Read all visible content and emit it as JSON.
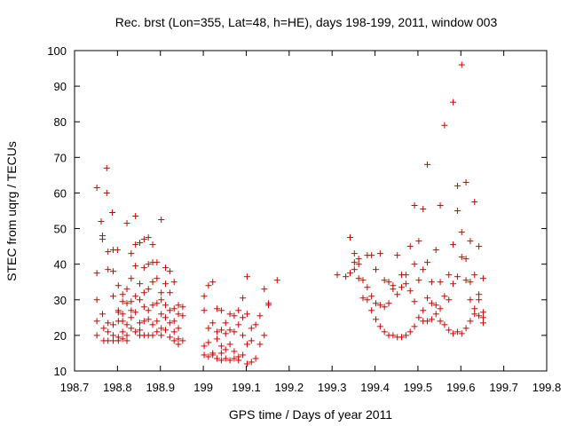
{
  "chart_data": {
    "type": "scatter",
    "title": "Rec. brst (Lon=355, Lat=48, h=HE), days 198-199, 2011, window 003",
    "xlabel": "GPS time / Days of year 2011",
    "ylabel": "STEC from uqrg / TECUs",
    "xlim": [
      198.7,
      199.8
    ],
    "ylim": [
      10,
      100
    ],
    "xticks": [
      198.7,
      198.8,
      198.9,
      199,
      199.1,
      199.2,
      199.3,
      199.4,
      199.5,
      199.6,
      199.7,
      199.8
    ],
    "xtick_labels": [
      "198.7",
      "198.8",
      "198.9",
      "199",
      "199.1",
      "199.2",
      "199.3",
      "199.4",
      "199.5",
      "199.6",
      "199.7",
      "199.8"
    ],
    "yticks": [
      10,
      20,
      30,
      40,
      50,
      60,
      70,
      80,
      90,
      100
    ],
    "ytick_labels": [
      "10",
      "20",
      "30",
      "40",
      "50",
      "60",
      "70",
      "80",
      "90",
      "100"
    ],
    "marker": "+",
    "color": "#cc0000",
    "series": [
      {
        "name": "STEC",
        "points": [
          [
            198.752,
            61.5
          ],
          [
            198.752,
            37.5
          ],
          [
            198.752,
            30.0
          ],
          [
            198.752,
            24.0
          ],
          [
            198.752,
            20.0
          ],
          [
            198.762,
            52.0
          ],
          [
            198.765,
            48.0
          ],
          [
            198.765,
            47.0
          ],
          [
            198.765,
            26.0
          ],
          [
            198.768,
            22.0
          ],
          [
            198.768,
            18.5
          ],
          [
            198.775,
            67.0
          ],
          [
            198.775,
            60.0
          ],
          [
            198.778,
            43.5
          ],
          [
            198.778,
            38.5
          ],
          [
            198.778,
            23.5
          ],
          [
            198.778,
            21.0
          ],
          [
            198.778,
            18.5
          ],
          [
            198.788,
            54.5
          ],
          [
            198.79,
            44.0
          ],
          [
            198.79,
            38.0
          ],
          [
            198.79,
            31.0
          ],
          [
            198.79,
            23.0
          ],
          [
            198.79,
            20.0
          ],
          [
            198.79,
            18.5
          ],
          [
            198.8,
            44.0
          ],
          [
            198.802,
            34.0
          ],
          [
            198.802,
            27.0
          ],
          [
            198.802,
            26.5
          ],
          [
            198.802,
            24.0
          ],
          [
            198.802,
            19.5
          ],
          [
            198.802,
            18.5
          ],
          [
            198.812,
            31.5
          ],
          [
            198.812,
            29.5
          ],
          [
            198.812,
            26.0
          ],
          [
            198.812,
            24.0
          ],
          [
            198.812,
            21.0
          ],
          [
            198.812,
            19.0
          ],
          [
            198.822,
            51.5
          ],
          [
            198.822,
            33.0
          ],
          [
            198.822,
            29.0
          ],
          [
            198.822,
            23.0
          ],
          [
            198.822,
            20.0
          ],
          [
            198.822,
            18.5
          ],
          [
            198.832,
            43.0
          ],
          [
            198.832,
            36.0
          ],
          [
            198.832,
            29.5
          ],
          [
            198.832,
            27.0
          ],
          [
            198.832,
            25.0
          ],
          [
            198.832,
            22.0
          ],
          [
            198.842,
            53.5
          ],
          [
            198.842,
            45.5
          ],
          [
            198.842,
            39.5
          ],
          [
            198.842,
            31.0
          ],
          [
            198.842,
            26.5
          ],
          [
            198.842,
            21.0
          ],
          [
            198.852,
            46.0
          ],
          [
            198.852,
            34.5
          ],
          [
            198.852,
            30.0
          ],
          [
            198.852,
            23.5
          ],
          [
            198.852,
            21.5
          ],
          [
            198.852,
            20.0
          ],
          [
            198.862,
            47.0
          ],
          [
            198.862,
            39.0
          ],
          [
            198.862,
            32.0
          ],
          [
            198.862,
            28.0
          ],
          [
            198.862,
            24.0
          ],
          [
            198.862,
            20.0
          ],
          [
            198.872,
            47.5
          ],
          [
            198.872,
            40.0
          ],
          [
            198.872,
            33.0
          ],
          [
            198.872,
            27.0
          ],
          [
            198.872,
            24.5
          ],
          [
            198.872,
            20.0
          ],
          [
            198.882,
            45.5
          ],
          [
            198.882,
            40.5
          ],
          [
            198.882,
            35.0
          ],
          [
            198.882,
            28.5
          ],
          [
            198.882,
            23.0
          ],
          [
            198.882,
            20.0
          ],
          [
            198.892,
            40.5
          ],
          [
            198.892,
            36.0
          ],
          [
            198.892,
            29.0
          ],
          [
            198.892,
            24.0
          ],
          [
            198.892,
            21.0
          ],
          [
            198.902,
            52.5
          ],
          [
            198.902,
            32.0
          ],
          [
            198.902,
            30.0
          ],
          [
            198.902,
            26.0
          ],
          [
            198.902,
            22.0
          ],
          [
            198.902,
            20.0
          ],
          [
            198.912,
            39.0
          ],
          [
            198.912,
            34.5
          ],
          [
            198.912,
            28.5
          ],
          [
            198.912,
            25.0
          ],
          [
            198.912,
            21.5
          ],
          [
            198.922,
            38.0
          ],
          [
            198.922,
            32.0
          ],
          [
            198.922,
            27.0
          ],
          [
            198.922,
            23.5
          ],
          [
            198.922,
            19.5
          ],
          [
            198.932,
            35.0
          ],
          [
            198.932,
            27.5
          ],
          [
            198.932,
            24.0
          ],
          [
            198.932,
            21.0
          ],
          [
            198.932,
            18.5
          ],
          [
            198.942,
            28.5
          ],
          [
            198.942,
            26.0
          ],
          [
            198.942,
            22.0
          ],
          [
            198.942,
            19.0
          ],
          [
            198.942,
            17.5
          ],
          [
            198.952,
            28.0
          ],
          [
            198.952,
            25.5
          ],
          [
            198.952,
            18.5
          ],
          [
            199.002,
            31.0
          ],
          [
            199.002,
            27.0
          ],
          [
            199.002,
            17.0
          ],
          [
            199.002,
            14.5
          ],
          [
            199.012,
            34.0
          ],
          [
            199.012,
            22.0
          ],
          [
            199.012,
            18.0
          ],
          [
            199.012,
            14.0
          ],
          [
            199.022,
            35.0
          ],
          [
            199.022,
            23.5
          ],
          [
            199.022,
            15.0
          ],
          [
            199.022,
            14.5
          ],
          [
            199.032,
            27.5
          ],
          [
            199.032,
            21.0
          ],
          [
            199.032,
            19.0
          ],
          [
            199.032,
            13.5
          ],
          [
            199.042,
            27.0
          ],
          [
            199.042,
            21.5
          ],
          [
            199.042,
            17.0
          ],
          [
            199.042,
            15.0
          ],
          [
            199.042,
            13.0
          ],
          [
            199.052,
            23.5
          ],
          [
            199.052,
            20.5
          ],
          [
            199.052,
            16.0
          ],
          [
            199.052,
            13.5
          ],
          [
            199.062,
            26.0
          ],
          [
            199.062,
            21.5
          ],
          [
            199.062,
            17.5
          ],
          [
            199.062,
            13.0
          ],
          [
            199.072,
            25.5
          ],
          [
            199.072,
            21.0
          ],
          [
            199.072,
            15.5
          ],
          [
            199.072,
            13.5
          ],
          [
            199.082,
            27.0
          ],
          [
            199.082,
            23.0
          ],
          [
            199.082,
            14.0
          ],
          [
            199.082,
            13.0
          ],
          [
            199.092,
            30.5
          ],
          [
            199.092,
            25.0
          ],
          [
            199.092,
            20.0
          ],
          [
            199.092,
            14.5
          ],
          [
            199.102,
            36.5
          ],
          [
            199.102,
            26.0
          ],
          [
            199.102,
            17.5
          ],
          [
            199.102,
            12.0
          ],
          [
            199.112,
            22.0
          ],
          [
            199.112,
            18.5
          ],
          [
            199.112,
            12.5
          ],
          [
            199.122,
            23.0
          ],
          [
            199.122,
            13.5
          ],
          [
            199.132,
            25.5
          ],
          [
            199.132,
            17.5
          ],
          [
            199.142,
            33.0
          ],
          [
            199.142,
            20.0
          ],
          [
            199.152,
            29.0
          ],
          [
            199.152,
            28.5
          ],
          [
            199.172,
            35.5
          ],
          [
            199.312,
            37.0
          ],
          [
            199.332,
            36.5
          ],
          [
            199.342,
            47.5
          ],
          [
            199.342,
            37.5
          ],
          [
            199.352,
            43.0
          ],
          [
            199.352,
            40.5
          ],
          [
            199.352,
            38.5
          ],
          [
            199.362,
            41.5
          ],
          [
            199.362,
            40.0
          ],
          [
            199.362,
            36.0
          ],
          [
            199.372,
            35.5
          ],
          [
            199.372,
            30.5
          ],
          [
            199.382,
            42.5
          ],
          [
            199.382,
            33.5
          ],
          [
            199.382,
            30.0
          ],
          [
            199.392,
            42.5
          ],
          [
            199.392,
            31.0
          ],
          [
            199.392,
            27.0
          ],
          [
            199.402,
            38.5
          ],
          [
            199.402,
            29.0
          ],
          [
            199.402,
            24.5
          ],
          [
            199.412,
            43.0
          ],
          [
            199.412,
            28.5
          ],
          [
            199.412,
            22.5
          ],
          [
            199.422,
            35.5
          ],
          [
            199.422,
            28.0
          ],
          [
            199.422,
            21.0
          ],
          [
            199.432,
            35.0
          ],
          [
            199.432,
            29.0
          ],
          [
            199.432,
            20.0
          ],
          [
            199.442,
            34.0
          ],
          [
            199.442,
            33.0
          ],
          [
            199.442,
            20.0
          ],
          [
            199.452,
            42.5
          ],
          [
            199.452,
            31.5
          ],
          [
            199.452,
            19.5
          ],
          [
            199.462,
            37.0
          ],
          [
            199.462,
            33.5
          ],
          [
            199.462,
            19.5
          ],
          [
            199.472,
            37.0
          ],
          [
            199.472,
            34.5
          ],
          [
            199.472,
            20.0
          ],
          [
            199.482,
            45.0
          ],
          [
            199.482,
            32.5
          ],
          [
            199.482,
            21.0
          ],
          [
            199.492,
            56.5
          ],
          [
            199.492,
            40.0
          ],
          [
            199.492,
            29.5
          ],
          [
            199.492,
            22.5
          ],
          [
            199.502,
            46.5
          ],
          [
            199.502,
            35.5
          ],
          [
            199.502,
            25.0
          ],
          [
            199.512,
            55.5
          ],
          [
            199.512,
            38.5
          ],
          [
            199.512,
            27.0
          ],
          [
            199.512,
            24.0
          ],
          [
            199.522,
            68.0
          ],
          [
            199.522,
            40.5
          ],
          [
            199.522,
            30.5
          ],
          [
            199.522,
            24.0
          ],
          [
            199.532,
            35.0
          ],
          [
            199.532,
            29.0
          ],
          [
            199.532,
            24.5
          ],
          [
            199.542,
            44.0
          ],
          [
            199.542,
            28.5
          ],
          [
            199.542,
            26.0
          ],
          [
            199.552,
            56.5
          ],
          [
            199.552,
            35.0
          ],
          [
            199.552,
            27.5
          ],
          [
            199.552,
            24.0
          ],
          [
            199.562,
            79.0
          ],
          [
            199.562,
            31.0
          ],
          [
            199.562,
            23.0
          ],
          [
            199.572,
            37.0
          ],
          [
            199.572,
            30.0
          ],
          [
            199.572,
            21.5
          ],
          [
            199.582,
            85.5
          ],
          [
            199.582,
            45.5
          ],
          [
            199.582,
            34.5
          ],
          [
            199.582,
            20.5
          ],
          [
            199.592,
            62.0
          ],
          [
            199.592,
            55.0
          ],
          [
            199.592,
            36.5
          ],
          [
            199.592,
            21.0
          ],
          [
            199.602,
            96.0
          ],
          [
            199.602,
            49.0
          ],
          [
            199.602,
            42.0
          ],
          [
            199.602,
            20.5
          ],
          [
            199.612,
            63.0
          ],
          [
            199.612,
            41.5
          ],
          [
            199.612,
            35.5
          ],
          [
            199.612,
            22.0
          ],
          [
            199.622,
            46.5
          ],
          [
            199.622,
            35.0
          ],
          [
            199.622,
            30.0
          ],
          [
            199.622,
            24.0
          ],
          [
            199.632,
            57.5
          ],
          [
            199.632,
            37.0
          ],
          [
            199.632,
            27.5
          ],
          [
            199.632,
            26.0
          ],
          [
            199.642,
            45.0
          ],
          [
            199.642,
            31.5
          ],
          [
            199.642,
            30.0
          ],
          [
            199.642,
            25.5
          ],
          [
            199.652,
            36.0
          ],
          [
            199.652,
            26.5
          ],
          [
            199.652,
            25.0
          ],
          [
            199.652,
            23.5
          ]
        ]
      }
    ]
  }
}
